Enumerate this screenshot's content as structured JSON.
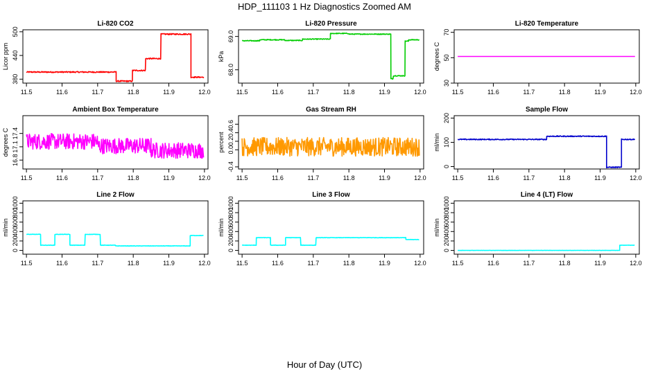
{
  "figure": {
    "title": "HDP_111103  1 Hz Diagnostics Zoomed AM",
    "xlabel": "Hour of Day (UTC)"
  },
  "chart_data": [
    {
      "type": "line",
      "title": "Li-820 CO2",
      "ylabel": "Licor ppm",
      "color": "#ff0000",
      "xlim": [
        11.49,
        12.01
      ],
      "ylim": [
        370,
        505
      ],
      "xticks": [
        "11.5",
        "11.6",
        "11.7",
        "11.8",
        "11.9",
        "12.0"
      ],
      "yticks": [
        {
          "v": 380,
          "label": "380"
        },
        {
          "v": 440,
          "label": "440"
        },
        {
          "v": 500,
          "label": "500"
        }
      ],
      "noise": 1.5,
      "segments": [
        {
          "x0": 11.5,
          "x1": 11.752,
          "y": 398
        },
        {
          "x0": 11.752,
          "x1": 11.798,
          "y": 375
        },
        {
          "x0": 11.798,
          "x1": 11.835,
          "y": 402
        },
        {
          "x0": 11.835,
          "x1": 11.878,
          "y": 432
        },
        {
          "x0": 11.878,
          "x1": 11.962,
          "y": 494
        },
        {
          "x0": 11.962,
          "x1": 11.998,
          "y": 385
        }
      ]
    },
    {
      "type": "line",
      "title": "Li-820 Pressure",
      "ylabel": "kPa",
      "color": "#00cc00",
      "xlim": [
        11.49,
        12.01
      ],
      "ylim": [
        67.6,
        69.2
      ],
      "xticks": [
        "11.5",
        "11.6",
        "11.7",
        "11.8",
        "11.9",
        "12.0"
      ],
      "yticks": [
        {
          "v": 68.0,
          "label": "68.0"
        },
        {
          "v": 69.0,
          "label": "69.0"
        }
      ],
      "noise": 0.012,
      "segments": [
        {
          "x0": 11.5,
          "x1": 11.55,
          "y": 68.87
        },
        {
          "x0": 11.55,
          "x1": 11.62,
          "y": 68.9
        },
        {
          "x0": 11.62,
          "x1": 11.67,
          "y": 68.88
        },
        {
          "x0": 11.67,
          "x1": 11.748,
          "y": 68.92
        },
        {
          "x0": 11.748,
          "x1": 11.8,
          "y": 69.09
        },
        {
          "x0": 11.8,
          "x1": 11.918,
          "y": 69.07
        },
        {
          "x0": 11.918,
          "x1": 11.925,
          "y": 67.73
        },
        {
          "x0": 11.925,
          "x1": 11.958,
          "y": 67.82
        },
        {
          "x0": 11.958,
          "x1": 11.968,
          "y": 68.86
        },
        {
          "x0": 11.968,
          "x1": 11.998,
          "y": 68.9
        }
      ]
    },
    {
      "type": "line",
      "title": "Li-820 Temperature",
      "ylabel": "degrees C",
      "color": "#ff00ff",
      "xlim": [
        11.49,
        12.01
      ],
      "ylim": [
        30,
        72
      ],
      "xticks": [
        "11.5",
        "11.6",
        "11.7",
        "11.8",
        "11.9",
        "12.0"
      ],
      "yticks": [
        {
          "v": 30,
          "label": "30"
        },
        {
          "v": 50,
          "label": "50"
        },
        {
          "v": 70,
          "label": "70"
        }
      ],
      "noise": 0,
      "segments": [
        {
          "x0": 11.5,
          "x1": 11.998,
          "y": 51
        }
      ]
    },
    {
      "type": "line",
      "title": "Ambient Box Temperature",
      "ylabel": "degrees C",
      "color": "#ff00ff",
      "xlim": [
        11.49,
        12.01
      ],
      "ylim": [
        16.6,
        17.8
      ],
      "xticks": [
        "11.5",
        "11.6",
        "11.7",
        "11.8",
        "11.9",
        "12.0"
      ],
      "yticks": [
        {
          "v": 16.8,
          "label": "16.8"
        },
        {
          "v": 17.1,
          "label": "17.1"
        },
        {
          "v": 17.4,
          "label": "17.4"
        }
      ],
      "noise": 0.18,
      "segments": [
        {
          "x0": 11.5,
          "x1": 11.7,
          "y": 17.22
        },
        {
          "x0": 11.7,
          "x1": 11.85,
          "y": 17.12
        },
        {
          "x0": 11.85,
          "x1": 11.998,
          "y": 17.02
        }
      ]
    },
    {
      "type": "line",
      "title": "Gas Stream RH",
      "ylabel": "percent",
      "color": "#ff9900",
      "xlim": [
        11.49,
        12.01
      ],
      "ylim": [
        -0.45,
        0.8
      ],
      "xticks": [
        "11.5",
        "11.6",
        "11.7",
        "11.8",
        "11.9",
        "12.0"
      ],
      "yticks": [
        {
          "v": -0.4,
          "label": "-0.4"
        },
        {
          "v": 0.0,
          "label": "0.0"
        },
        {
          "v": 0.2,
          "label": "0.2"
        },
        {
          "v": 0.4,
          "label": "0.4"
        },
        {
          "v": 0.6,
          "label": "0.6"
        }
      ],
      "noise": 0.22,
      "segments": [
        {
          "x0": 11.5,
          "x1": 11.998,
          "y": 0.07
        }
      ]
    },
    {
      "type": "line",
      "title": "Sample Flow",
      "ylabel": "ml/min",
      "color": "#0000cc",
      "xlim": [
        11.49,
        12.01
      ],
      "ylim": [
        -10,
        210
      ],
      "xticks": [
        "11.5",
        "11.6",
        "11.7",
        "11.8",
        "11.9",
        "12.0"
      ],
      "yticks": [
        {
          "v": 0,
          "label": "0"
        },
        {
          "v": 100,
          "label": "100"
        },
        {
          "v": 200,
          "label": "200"
        }
      ],
      "noise": 2,
      "segments": [
        {
          "x0": 11.5,
          "x1": 11.75,
          "y": 112
        },
        {
          "x0": 11.75,
          "x1": 11.918,
          "y": 125
        },
        {
          "x0": 11.918,
          "x1": 11.96,
          "y": -3
        },
        {
          "x0": 11.96,
          "x1": 11.998,
          "y": 112
        }
      ]
    },
    {
      "type": "line",
      "title": "Line 2 Flow",
      "ylabel": "ml/min",
      "color": "#00ffff",
      "xlim": [
        11.49,
        12.01
      ],
      "ylim": [
        -80,
        1050
      ],
      "xticks": [
        "11.5",
        "11.6",
        "11.7",
        "11.8",
        "11.9",
        "12.0"
      ],
      "yticks": [
        {
          "v": 0,
          "label": "0"
        },
        {
          "v": 200,
          "label": "200"
        },
        {
          "v": 400,
          "label": "400"
        },
        {
          "v": 600,
          "label": "600"
        },
        {
          "v": 800,
          "label": "800"
        },
        {
          "v": 1000,
          "label": "1000"
        }
      ],
      "noise": 4,
      "segments": [
        {
          "x0": 11.5,
          "x1": 11.54,
          "y": 340
        },
        {
          "x0": 11.54,
          "x1": 11.58,
          "y": 110
        },
        {
          "x0": 11.58,
          "x1": 11.622,
          "y": 340
        },
        {
          "x0": 11.622,
          "x1": 11.665,
          "y": 110
        },
        {
          "x0": 11.665,
          "x1": 11.708,
          "y": 340
        },
        {
          "x0": 11.708,
          "x1": 11.75,
          "y": 110
        },
        {
          "x0": 11.75,
          "x1": 11.96,
          "y": 95
        },
        {
          "x0": 11.96,
          "x1": 11.998,
          "y": 315
        }
      ]
    },
    {
      "type": "line",
      "title": "Line 3 Flow",
      "ylabel": "ml/min",
      "color": "#00ffff",
      "xlim": [
        11.49,
        12.01
      ],
      "ylim": [
        -80,
        1050
      ],
      "xticks": [
        "11.5",
        "11.6",
        "11.7",
        "11.8",
        "11.9",
        "12.0"
      ],
      "yticks": [
        {
          "v": 0,
          "label": "0"
        },
        {
          "v": 200,
          "label": "200"
        },
        {
          "v": 400,
          "label": "400"
        },
        {
          "v": 600,
          "label": "600"
        },
        {
          "v": 800,
          "label": "800"
        },
        {
          "v": 1000,
          "label": "1000"
        }
      ],
      "noise": 4,
      "segments": [
        {
          "x0": 11.5,
          "x1": 11.54,
          "y": 110
        },
        {
          "x0": 11.54,
          "x1": 11.58,
          "y": 270
        },
        {
          "x0": 11.58,
          "x1": 11.622,
          "y": 110
        },
        {
          "x0": 11.622,
          "x1": 11.665,
          "y": 270
        },
        {
          "x0": 11.665,
          "x1": 11.708,
          "y": 110
        },
        {
          "x0": 11.708,
          "x1": 11.96,
          "y": 270
        },
        {
          "x0": 11.96,
          "x1": 11.998,
          "y": 230
        }
      ]
    },
    {
      "type": "line",
      "title": "Line 4 (LT) Flow",
      "ylabel": "ml/min",
      "color": "#00ffff",
      "xlim": [
        11.49,
        12.01
      ],
      "ylim": [
        -80,
        1050
      ],
      "xticks": [
        "11.5",
        "11.6",
        "11.7",
        "11.8",
        "11.9",
        "12.0"
      ],
      "yticks": [
        {
          "v": 0,
          "label": "0"
        },
        {
          "v": 200,
          "label": "200"
        },
        {
          "v": 400,
          "label": "400"
        },
        {
          "v": 600,
          "label": "600"
        },
        {
          "v": 800,
          "label": "800"
        },
        {
          "v": 1000,
          "label": "1000"
        }
      ],
      "noise": 2,
      "segments": [
        {
          "x0": 11.5,
          "x1": 11.955,
          "y": 0
        },
        {
          "x0": 11.955,
          "x1": 11.998,
          "y": 110
        }
      ]
    }
  ]
}
